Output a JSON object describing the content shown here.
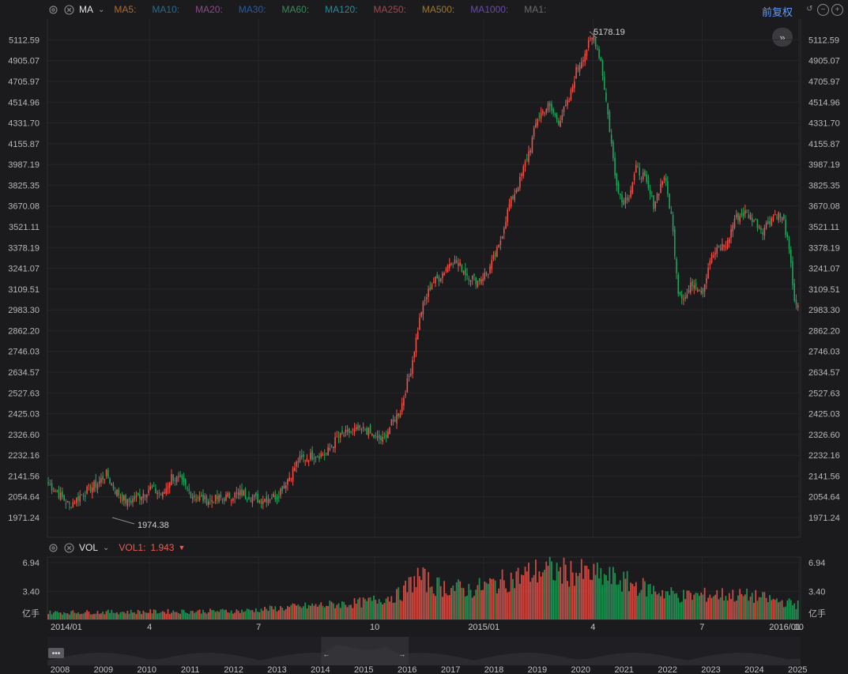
{
  "toolbar": {
    "indicator": "MA",
    "ma_items": [
      {
        "label": "MA5:",
        "color": "#b06a2a"
      },
      {
        "label": "MA10:",
        "color": "#2a6a8c"
      },
      {
        "label": "MA20:",
        "color": "#8a4a8c"
      },
      {
        "label": "MA30:",
        "color": "#2a5a9c"
      },
      {
        "label": "MA60:",
        "color": "#3a8a5a"
      },
      {
        "label": "MA120:",
        "color": "#2a8a9a"
      },
      {
        "label": "MA250:",
        "color": "#a04a4a"
      },
      {
        "label": "MA500:",
        "color": "#9a7a2a"
      },
      {
        "label": "MA1000:",
        "color": "#6a4aaa"
      },
      {
        "label": "MA1:",
        "color": "#6a6a6a"
      }
    ],
    "adjust_label": "前复权",
    "icons": [
      "settings-icon",
      "close-icon",
      "chevron-down-icon",
      "reset-icon",
      "zoom-out-icon",
      "zoom-in-icon",
      "expand-icon"
    ]
  },
  "volume_toolbar": {
    "indicator": "VOL",
    "vol_label": "VOL1:",
    "vol_value": "1.943"
  },
  "colors": {
    "up": "#f0524a",
    "down": "#1fa65a",
    "accent": "#5b9bff",
    "background": "#1b1b1e"
  },
  "chart_data": [
    {
      "type": "candlestick",
      "price_ticks": [
        "5112.59",
        "4905.07",
        "4705.97",
        "4514.96",
        "4331.70",
        "4155.87",
        "3987.19",
        "3825.35",
        "3670.08",
        "3521.11",
        "3378.19",
        "3241.07",
        "3109.51",
        "2983.30",
        "2862.20",
        "2746.03",
        "2634.57",
        "2527.63",
        "2425.03",
        "2326.60",
        "2232.16",
        "2141.56",
        "2054.64",
        "1971.24"
      ],
      "scale": "log",
      "ylim": [
        1895,
        5330
      ],
      "x_ticks": [
        "2014/01",
        "4",
        "7",
        "10",
        "2015/01",
        "4",
        "7",
        "10",
        "2016/01"
      ],
      "annotations": [
        {
          "label": "5178.19",
          "type": "max",
          "value": 5178.19
        },
        {
          "label": "1974.38",
          "type": "min",
          "value": 1974.38
        }
      ],
      "keypoints": [
        [
          0,
          2110
        ],
        [
          12,
          2020
        ],
        [
          20,
          2070
        ],
        [
          28,
          2110
        ],
        [
          33,
          2150
        ],
        [
          38,
          2080
        ],
        [
          45,
          2030
        ],
        [
          50,
          2050
        ],
        [
          58,
          2090
        ],
        [
          65,
          2060
        ],
        [
          70,
          2140
        ],
        [
          75,
          2120
        ],
        [
          82,
          2060
        ],
        [
          90,
          2040
        ],
        [
          100,
          2050
        ],
        [
          110,
          2070
        ],
        [
          120,
          2040
        ],
        [
          130,
          2060
        ],
        [
          138,
          2150
        ],
        [
          142,
          2210
        ],
        [
          150,
          2230
        ],
        [
          158,
          2240
        ],
        [
          164,
          2310
        ],
        [
          172,
          2340
        ],
        [
          180,
          2350
        ],
        [
          186,
          2310
        ],
        [
          190,
          2300
        ],
        [
          196,
          2390
        ],
        [
          200,
          2440
        ],
        [
          206,
          2650
        ],
        [
          212,
          2980
        ],
        [
          218,
          3150
        ],
        [
          222,
          3180
        ],
        [
          226,
          3240
        ],
        [
          229,
          3300
        ],
        [
          233,
          3270
        ],
        [
          238,
          3200
        ],
        [
          244,
          3160
        ],
        [
          250,
          3220
        ],
        [
          256,
          3380
        ],
        [
          262,
          3680
        ],
        [
          268,
          3860
        ],
        [
          274,
          4130
        ],
        [
          278,
          4380
        ],
        [
          284,
          4480
        ],
        [
          290,
          4350
        ],
        [
          296,
          4530
        ],
        [
          300,
          4810
        ],
        [
          304,
          4950
        ],
        [
          308,
          5100
        ],
        [
          310,
          5150
        ],
        [
          314,
          4900
        ],
        [
          318,
          4400
        ],
        [
          322,
          3900
        ],
        [
          326,
          3700
        ],
        [
          330,
          3750
        ],
        [
          334,
          3950
        ],
        [
          338,
          3900
        ],
        [
          344,
          3680
        ],
        [
          350,
          3900
        ],
        [
          354,
          3600
        ],
        [
          358,
          3100
        ],
        [
          362,
          3050
        ],
        [
          366,
          3150
        ],
        [
          372,
          3100
        ],
        [
          376,
          3300
        ],
        [
          382,
          3380
        ],
        [
          386,
          3410
        ],
        [
          390,
          3580
        ],
        [
          396,
          3620
        ],
        [
          400,
          3580
        ],
        [
          406,
          3500
        ],
        [
          410,
          3570
        ],
        [
          414,
          3620
        ],
        [
          418,
          3560
        ],
        [
          421,
          3350
        ],
        [
          424,
          3050
        ],
        [
          426,
          2990
        ]
      ],
      "volume_ticks": [
        "6.94",
        "3.40"
      ],
      "volume_unit": "亿手",
      "volume_keypoints": [
        [
          0,
          0.9
        ],
        [
          60,
          1.0
        ],
        [
          110,
          1.1
        ],
        [
          140,
          1.6
        ],
        [
          180,
          2.2
        ],
        [
          200,
          3.2
        ],
        [
          210,
          5.5
        ],
        [
          220,
          4.3
        ],
        [
          240,
          3.8
        ],
        [
          260,
          5.0
        ],
        [
          280,
          6.3
        ],
        [
          300,
          6.0
        ],
        [
          320,
          5.3
        ],
        [
          340,
          4.0
        ],
        [
          360,
          3.0
        ],
        [
          380,
          3.2
        ],
        [
          400,
          3.0
        ],
        [
          426,
          1.9
        ]
      ]
    }
  ],
  "navigator": {
    "years": [
      "2008",
      "2009",
      "2010",
      "2011",
      "2012",
      "2013",
      "2014",
      "2015",
      "2016",
      "2017",
      "2018",
      "2019",
      "2020",
      "2021",
      "2022",
      "2023",
      "2024",
      "2025"
    ],
    "window_start": "2014",
    "window_end": "2016"
  }
}
